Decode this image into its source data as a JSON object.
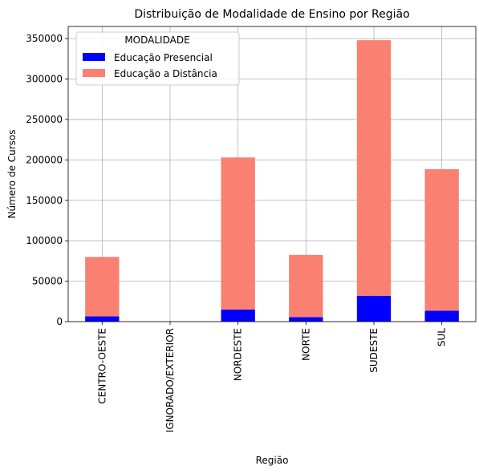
{
  "chart_data": {
    "type": "bar",
    "stacked": true,
    "title": "Distribuição de Modalidade de Ensino por Região",
    "xlabel": "Região",
    "ylabel": "Número de Cursos",
    "categories": [
      "CENTRO-OESTE",
      "IGNORADO/EXTERIOR",
      "NORDESTE",
      "NORTE",
      "SUDESTE",
      "SUL"
    ],
    "series": [
      {
        "name": "Educação Presencial",
        "color": "#0000ff",
        "values": [
          6500,
          0,
          15000,
          5500,
          32000,
          13500
        ]
      },
      {
        "name": "Educação a Distância",
        "color": "#fa8072",
        "values": [
          73500,
          0,
          188000,
          77000,
          316000,
          175000
        ]
      }
    ],
    "ylim": [
      0,
      365000
    ],
    "yticks": [
      0,
      50000,
      100000,
      150000,
      200000,
      250000,
      300000,
      350000
    ],
    "grid": true,
    "legend": {
      "title": "MODALIDADE",
      "position": "upper-left"
    }
  }
}
